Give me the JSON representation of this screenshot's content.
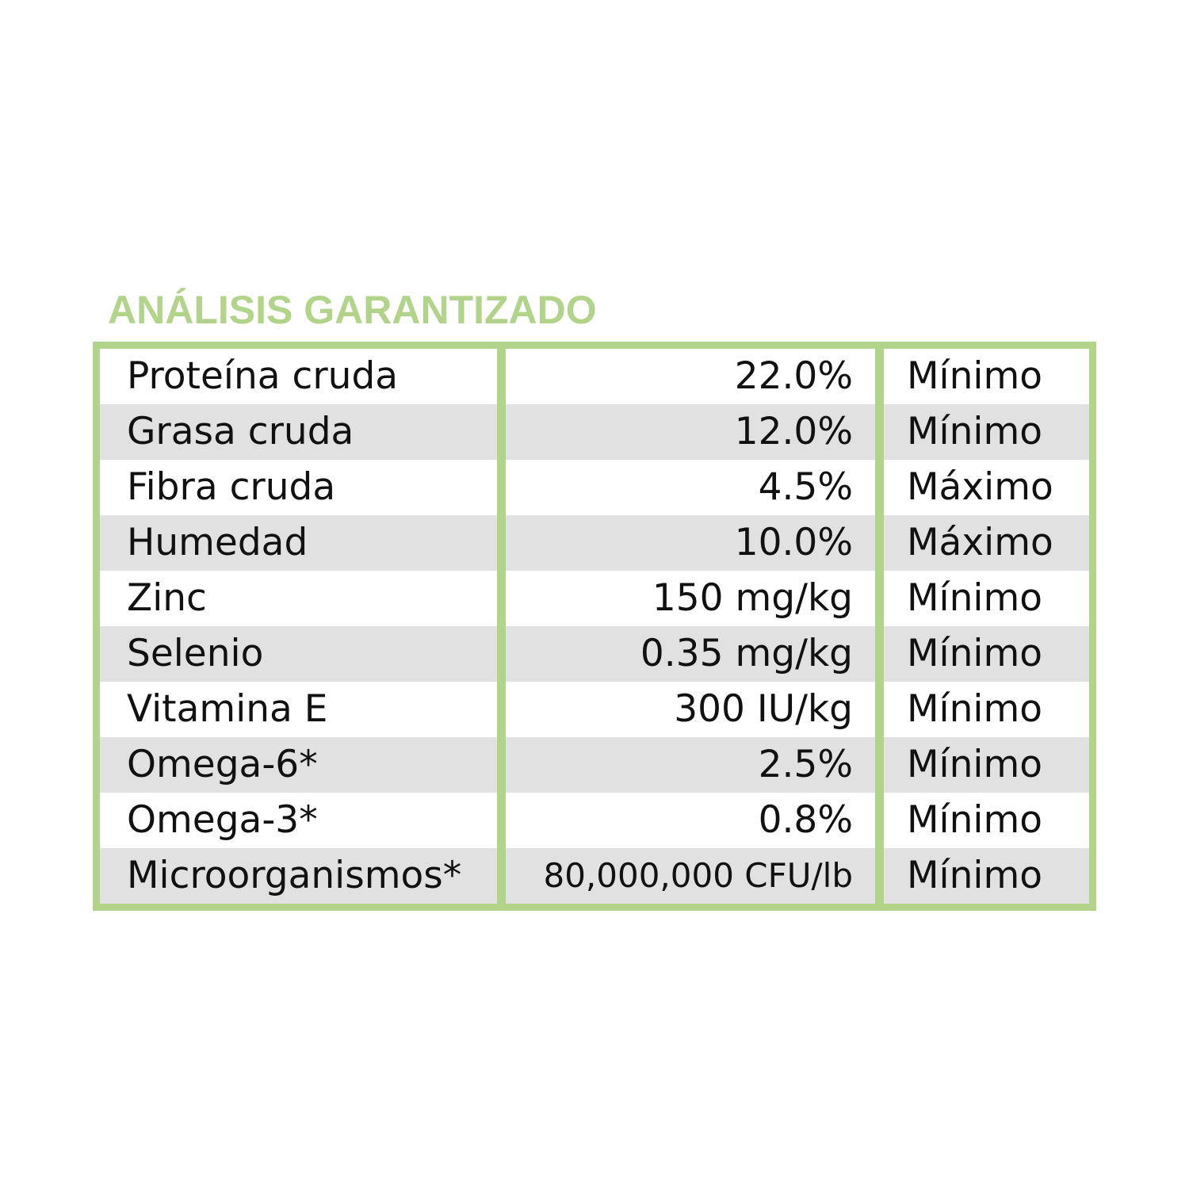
{
  "title": "ANÁLISIS GARANTIZADO",
  "colors": {
    "accent": "#b1d48a",
    "row_alt": "#e1e1e1"
  },
  "rows": [
    {
      "nutrient": "Proteína cruda",
      "value": "22.0%",
      "type": "Mínimo"
    },
    {
      "nutrient": "Grasa cruda",
      "value": "12.0%",
      "type": "Mínimo"
    },
    {
      "nutrient": "Fibra cruda",
      "value": "4.5%",
      "type": "Máximo"
    },
    {
      "nutrient": "Humedad",
      "value": "10.0%",
      "type": "Máximo"
    },
    {
      "nutrient": "Zinc",
      "value": "150 mg/kg",
      "type": "Mínimo"
    },
    {
      "nutrient": "Selenio",
      "value": "0.35 mg/kg",
      "type": "Mínimo"
    },
    {
      "nutrient": "Vitamina E",
      "value": "300 IU/kg",
      "type": "Mínimo"
    },
    {
      "nutrient": "Omega-6*",
      "value": "2.5%",
      "type": "Mínimo"
    },
    {
      "nutrient": "Omega-3*",
      "value": "0.8%",
      "type": "Mínimo"
    },
    {
      "nutrient": "Microorganismos*",
      "value": "80,000,000 CFU/lb",
      "type": "Mínimo"
    }
  ]
}
